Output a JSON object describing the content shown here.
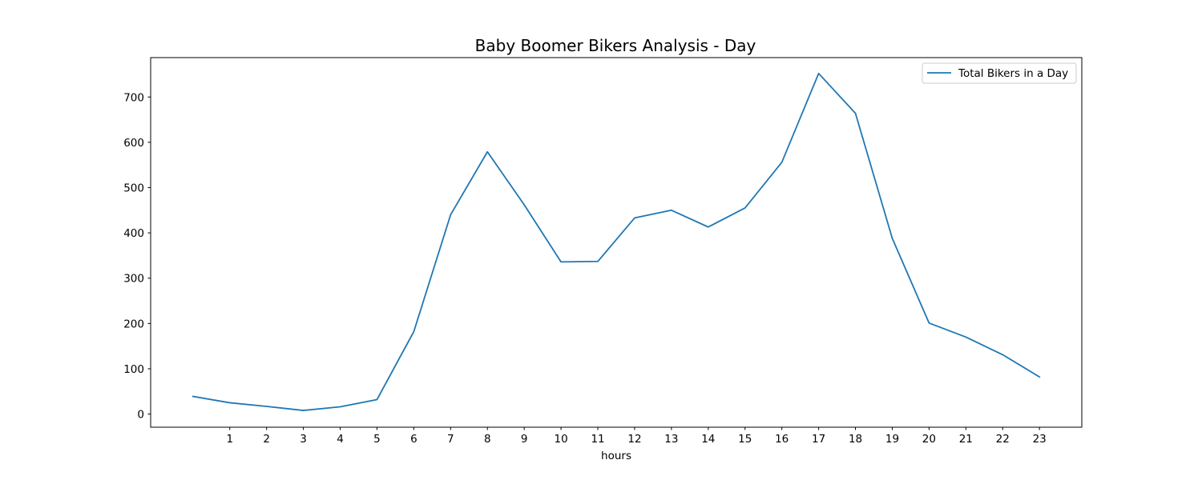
{
  "chart_data": {
    "type": "line",
    "title": "Baby Boomer Bikers Analysis - Day",
    "xlabel": "hours",
    "ylabel": "",
    "x": [
      0,
      1,
      2,
      3,
      4,
      5,
      6,
      7,
      8,
      9,
      10,
      11,
      12,
      13,
      14,
      15,
      16,
      17,
      18,
      19,
      20,
      21,
      22,
      23
    ],
    "x_tick_labels": [
      1,
      2,
      3,
      4,
      5,
      6,
      7,
      8,
      9,
      10,
      11,
      12,
      13,
      14,
      15,
      16,
      17,
      18,
      19,
      20,
      21,
      22,
      23
    ],
    "y_ticks": [
      0,
      100,
      200,
      300,
      400,
      500,
      600,
      700
    ],
    "xlim": [
      -1.15,
      24.15
    ],
    "ylim": [
      -29,
      787
    ],
    "series": [
      {
        "name": "Total Bikers in a Day",
        "color": "#1f77b4",
        "values": [
          39,
          25,
          17,
          8,
          16,
          32,
          182,
          440,
          579,
          462,
          336,
          337,
          433,
          450,
          413,
          455,
          556,
          752,
          664,
          388,
          201,
          170,
          131,
          82
        ]
      }
    ],
    "legend": {
      "position": "top-right"
    },
    "grid": false
  }
}
